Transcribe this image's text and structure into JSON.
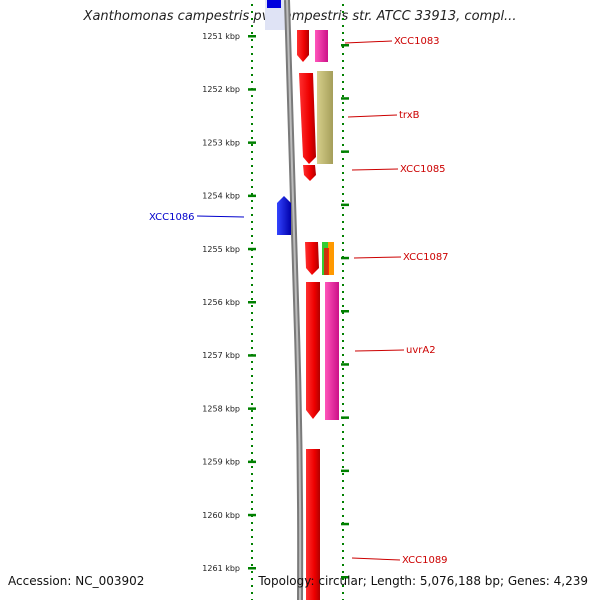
{
  "title": "Xanthomonas campestris pv. campestris str. ATCC 33913, compl...",
  "footer": {
    "accession": "Accession: NC_003902",
    "topology": "Topology: circular; Length: 5,076,188 bp; Genes: 4,239"
  },
  "axis": {
    "unit": "kbp",
    "ticks": [
      "1251 kbp",
      "1252 kbp",
      "1253 kbp",
      "1254 kbp",
      "1255 kbp",
      "1256 kbp",
      "1257 kbp",
      "1258 kbp",
      "1259 kbp",
      "1260 kbp",
      "1261 kbp"
    ]
  },
  "colors": {
    "axis_green": "#008000",
    "forward_gene": "#ff0000",
    "reverse_gene": "#0000ee",
    "label_forward": "#cc0000",
    "label_reverse": "#0000cc",
    "backbone": "#808080",
    "magenta": "#ee2299",
    "olive": "#bdb76b",
    "green": "#33cc33",
    "orange": "#ff9900"
  },
  "genes": [
    {
      "name": "XCC1083",
      "strand": "+",
      "color": "#ff0000"
    },
    {
      "name": "trxB",
      "strand": "+",
      "color": "#ff0000"
    },
    {
      "name": "XCC1085",
      "strand": "+",
      "color": "#ff0000"
    },
    {
      "name": "XCC1086",
      "strand": "-",
      "color": "#0000ee"
    },
    {
      "name": "XCC1087",
      "strand": "+",
      "color": "#ff0000"
    },
    {
      "name": "uvrA2",
      "strand": "+",
      "color": "#ff0000"
    },
    {
      "name": "XCC1089",
      "strand": "+",
      "color": "#ff0000"
    }
  ]
}
